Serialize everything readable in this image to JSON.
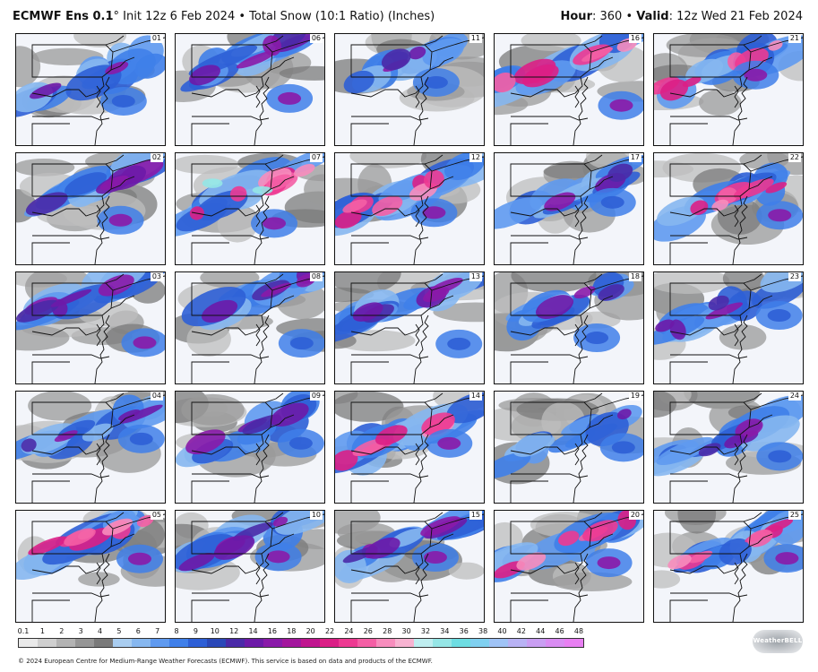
{
  "header": {
    "model": "ECMWF Ens 0.1",
    "degree": "°",
    "subtitle": " Init 12z 6 Feb 2024 • Total Snow (10:1 Ratio) (Inches)",
    "hour_label": "Hour",
    "hour_value": ": 360 • ",
    "valid_label": "Valid",
    "valid_value": ": 12z Wed 21 Feb 2024"
  },
  "panels": [
    {
      "label": "01",
      "intensity": 0.25
    },
    {
      "label": "06",
      "intensity": 0.55
    },
    {
      "label": "11",
      "intensity": 0.35
    },
    {
      "label": "16",
      "intensity": 0.75
    },
    {
      "label": "21",
      "intensity": 0.7
    },
    {
      "label": "02",
      "intensity": 0.55
    },
    {
      "label": "07",
      "intensity": 0.9
    },
    {
      "label": "12",
      "intensity": 0.8
    },
    {
      "label": "17",
      "intensity": 0.3
    },
    {
      "label": "22",
      "intensity": 0.7
    },
    {
      "label": "03",
      "intensity": 0.6
    },
    {
      "label": "08",
      "intensity": 0.5
    },
    {
      "label": "13",
      "intensity": 0.5
    },
    {
      "label": "18",
      "intensity": 0.35
    },
    {
      "label": "23",
      "intensity": 0.45
    },
    {
      "label": "04",
      "intensity": 0.45
    },
    {
      "label": "09",
      "intensity": 0.45
    },
    {
      "label": "14",
      "intensity": 0.7
    },
    {
      "label": "19",
      "intensity": 0.15
    },
    {
      "label": "24",
      "intensity": 0.4
    },
    {
      "label": "05",
      "intensity": 0.85
    },
    {
      "label": "10",
      "intensity": 0.6
    },
    {
      "label": "15",
      "intensity": 0.55
    },
    {
      "label": "20",
      "intensity": 0.7
    },
    {
      "label": "25",
      "intensity": 0.75
    }
  ],
  "legend": {
    "ticks": [
      "0.1",
      "1",
      "2",
      "3",
      "4",
      "5",
      "6",
      "7",
      "8",
      "9",
      "10",
      "12",
      "14",
      "16",
      "18",
      "20",
      "22",
      "24",
      "26",
      "28",
      "30",
      "32",
      "34",
      "36",
      "38",
      "40",
      "42",
      "44",
      "46",
      "48"
    ],
    "colors": [
      "#e9e9e9",
      "#cfcfcf",
      "#b3b3b3",
      "#969696",
      "#7a7a7a",
      "#a9cdf0",
      "#86b7ef",
      "#5f9af0",
      "#3f7fe9",
      "#2d5fd6",
      "#2a48b8",
      "#4a2aa8",
      "#6d1aa8",
      "#8a1aa9",
      "#a3169d",
      "#c0158f",
      "#db1f86",
      "#ed3a92",
      "#f45fa5",
      "#f78dbd",
      "#f7b3d1",
      "#bfeef0",
      "#95e6e6",
      "#6ddde2",
      "#7fd0f0",
      "#9fc3f6",
      "#b8b2f4",
      "#c99ef2",
      "#d98cf2",
      "#e87ff2"
    ]
  },
  "logo": {
    "text": "WeatherBELL"
  },
  "footer": {
    "text": "© 2024 European Centre for Medium-Range Weather Forecasts (ECMWF). This service is based on data and products of the ECMWF."
  }
}
